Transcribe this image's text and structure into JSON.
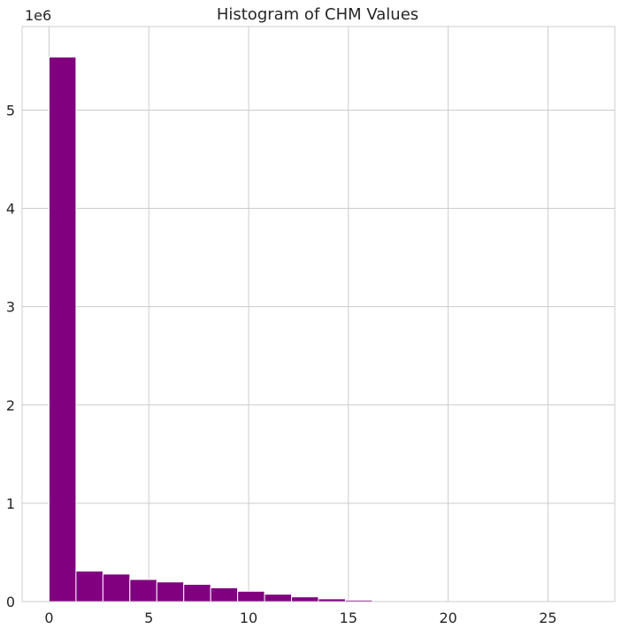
{
  "chart_data": {
    "type": "bar",
    "title": "Histogram of CHM Values",
    "xlabel": "",
    "ylabel": "",
    "y_offset_label": "1e6",
    "xlim": [
      -1.35,
      28.35
    ],
    "ylim": [
      0,
      5.85
    ],
    "x_ticks": [
      0,
      5,
      10,
      15,
      20,
      25
    ],
    "y_ticks": [
      0,
      1,
      2,
      3,
      4,
      5
    ],
    "bin_edges": [
      0,
      1.35,
      2.7,
      4.05,
      5.4,
      6.75,
      8.1,
      9.45,
      10.8,
      12.15,
      13.5,
      14.85,
      16.2,
      17.55,
      18.9,
      20.25,
      21.6,
      22.95,
      24.3,
      25.65,
      27.0
    ],
    "values": [
      5.54,
      0.31,
      0.28,
      0.225,
      0.2,
      0.175,
      0.14,
      0.105,
      0.075,
      0.048,
      0.028,
      0.015,
      0.006,
      0.003,
      0.001,
      0.0005,
      0.0003,
      0.0002,
      0.0001,
      0.0001
    ],
    "value_unit_multiplier": "1e6",
    "bar_color": "#800080",
    "grid": true,
    "legend": "none"
  }
}
